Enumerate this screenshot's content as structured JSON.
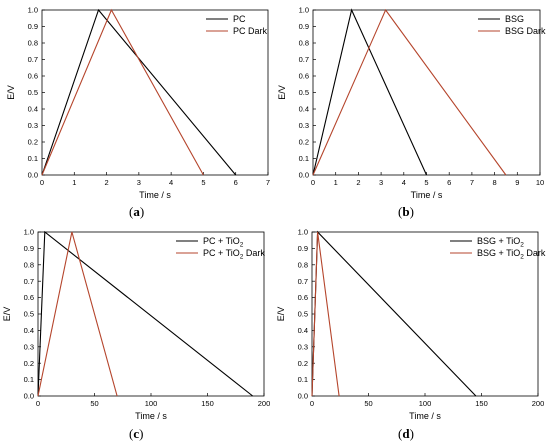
{
  "colors": {
    "black_series": "#000000",
    "red_series": "#b5452c"
  },
  "chart_data": [
    {
      "type": "line",
      "panel_label": "a",
      "xlabel": "Time / s",
      "ylabel": "E/V",
      "xlim": [
        0,
        7
      ],
      "ylim": [
        0,
        1.0
      ],
      "xticks": [
        0,
        1,
        2,
        3,
        4,
        5,
        6,
        7
      ],
      "yticks": [
        0.0,
        0.1,
        0.2,
        0.3,
        0.4,
        0.5,
        0.6,
        0.7,
        0.8,
        0.9,
        1.0
      ],
      "legend_position": "top-right",
      "series": [
        {
          "name": "PC",
          "color": "#000000",
          "x": [
            0,
            1.75,
            6.0
          ],
          "y": [
            0,
            1.0,
            0
          ]
        },
        {
          "name": "PC Dark",
          "color": "#b5452c",
          "x": [
            0,
            2.15,
            5.0
          ],
          "y": [
            0,
            1.0,
            0
          ]
        }
      ]
    },
    {
      "type": "line",
      "panel_label": "b",
      "xlabel": "Time / s",
      "ylabel": "E/V",
      "xlim": [
        0,
        10
      ],
      "ylim": [
        0,
        1.0
      ],
      "xticks": [
        0,
        1,
        2,
        3,
        4,
        5,
        6,
        7,
        8,
        9,
        10
      ],
      "yticks": [
        0.0,
        0.1,
        0.2,
        0.3,
        0.4,
        0.5,
        0.6,
        0.7,
        0.8,
        0.9,
        1.0
      ],
      "legend_position": "top-right",
      "series": [
        {
          "name": "BSG",
          "color": "#000000",
          "x": [
            0,
            1.7,
            5.0
          ],
          "y": [
            0,
            1.0,
            0
          ]
        },
        {
          "name": "BSG Dark",
          "color": "#b5452c",
          "x": [
            0,
            3.2,
            8.5
          ],
          "y": [
            0,
            1.0,
            0
          ]
        }
      ]
    },
    {
      "type": "line",
      "panel_label": "c",
      "xlabel": "Time / s",
      "ylabel": "E/V",
      "xlim": [
        0,
        200
      ],
      "ylim": [
        0,
        1.0
      ],
      "xticks": [
        0,
        50,
        100,
        150,
        200
      ],
      "yticks": [
        0.0,
        0.1,
        0.2,
        0.3,
        0.4,
        0.5,
        0.6,
        0.7,
        0.8,
        0.9,
        1.0
      ],
      "legend_position": "top-right",
      "series": [
        {
          "name": "PC + TiO2",
          "legend_main": "PC + TiO",
          "legend_sub": "2",
          "legend_suffix": "",
          "color": "#000000",
          "x": [
            0,
            6,
            190
          ],
          "y": [
            0,
            1.0,
            0
          ]
        },
        {
          "name": "PC + TiO2 Dark",
          "legend_main": "PC + TiO",
          "legend_sub": "2",
          "legend_suffix": " Dark",
          "color": "#b5452c",
          "x": [
            0,
            30,
            70
          ],
          "y": [
            0,
            1.0,
            0
          ]
        }
      ]
    },
    {
      "type": "line",
      "panel_label": "d",
      "xlabel": "Time / s",
      "ylabel": "E/V",
      "xlim": [
        0,
        200
      ],
      "ylim": [
        0,
        1.0
      ],
      "xticks": [
        0,
        50,
        100,
        150,
        200
      ],
      "yticks": [
        0.0,
        0.1,
        0.2,
        0.3,
        0.4,
        0.5,
        0.6,
        0.7,
        0.8,
        0.9,
        1.0
      ],
      "legend_position": "top-right",
      "series": [
        {
          "name": "BSG + TiO2",
          "legend_main": "BSG + TiO",
          "legend_sub": "2",
          "legend_suffix": "",
          "color": "#000000",
          "x": [
            0,
            5,
            145
          ],
          "y": [
            0,
            1.0,
            0
          ]
        },
        {
          "name": "BSG + TiO2 Dark",
          "legend_main": "BSG + TiO",
          "legend_sub": "2",
          "legend_suffix": " Dark",
          "color": "#b5452c",
          "x": [
            0,
            5,
            24
          ],
          "y": [
            0,
            1.0,
            0
          ]
        }
      ]
    }
  ]
}
